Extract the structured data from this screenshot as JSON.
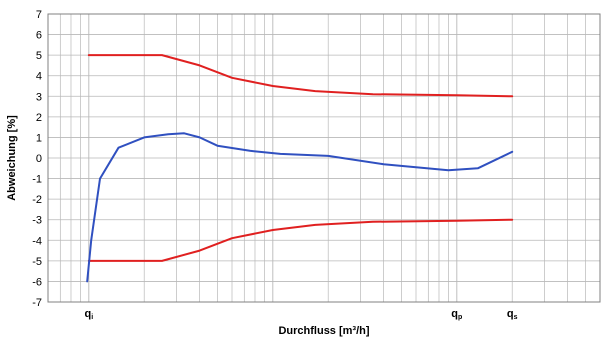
{
  "chart_data": {
    "type": "line",
    "title": "",
    "xlabel": "Durchfluss [m³/h]",
    "ylabel": "Abweichung [%]",
    "ylim": [
      -7,
      7
    ],
    "yticks": [
      7,
      6,
      5,
      4,
      3,
      2,
      1,
      0,
      -1,
      -2,
      -3,
      -4,
      -5,
      -6,
      -7
    ],
    "xscale": "log",
    "grid": true,
    "x_markers": [
      {
        "main": "q",
        "sub": "i",
        "x": 1
      },
      {
        "main": "q",
        "sub": "p",
        "x": 100
      },
      {
        "main": "q",
        "sub": "s",
        "x": 200
      }
    ],
    "series": [
      {
        "color": "#e02020",
        "x": [
          1,
          2.5,
          4,
          6,
          10,
          17,
          35,
          100,
          200
        ],
        "values": [
          5,
          5,
          4.5,
          3.9,
          3.5,
          3.25,
          3.1,
          3.05,
          3.0
        ]
      },
      {
        "color": "#e02020",
        "x": [
          1,
          2.5,
          4,
          6,
          10,
          17,
          35,
          100,
          200
        ],
        "values": [
          -5,
          -5,
          -4.5,
          -3.9,
          -3.5,
          -3.25,
          -3.1,
          -3.05,
          -3.0
        ]
      },
      {
        "color": "#3050c0",
        "x": [
          0.98,
          1.03,
          1.15,
          1.45,
          2.0,
          2.7,
          3.3,
          4.0,
          5.0,
          7.5,
          11,
          20,
          40,
          60,
          90,
          130,
          200
        ],
        "values": [
          -6,
          -4,
          -1,
          0.5,
          1.0,
          1.15,
          1.2,
          1.0,
          0.6,
          0.35,
          0.2,
          0.1,
          -0.3,
          -0.45,
          -0.6,
          -0.5,
          0.3
        ]
      }
    ]
  }
}
